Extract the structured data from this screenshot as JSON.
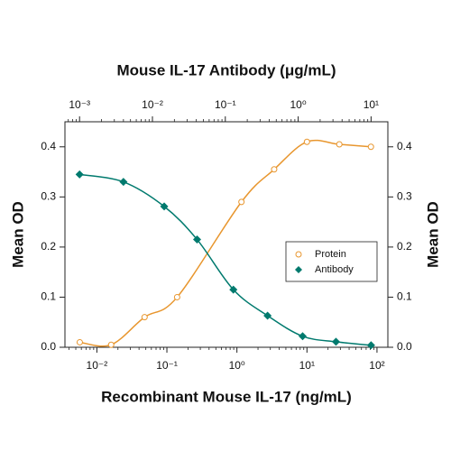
{
  "chart_data": {
    "type": "scatter",
    "x2label": "Mouse IL-17 Antibody (μg/mL)",
    "xlabel": "Recombinant Mouse IL-17 (ng/mL)",
    "ylabel": "Mean OD",
    "xscale": "log",
    "xlim": [
      0.0035,
      143
    ],
    "xticks": [
      {
        "value": 0.01,
        "label": "10⁻²"
      },
      {
        "value": 0.1,
        "label": "10⁻¹"
      },
      {
        "value": 1,
        "label": "10⁰"
      },
      {
        "value": 10,
        "label": "10¹"
      },
      {
        "value": 100,
        "label": "10²"
      }
    ],
    "x2lim": [
      0.00063,
      17
    ],
    "x2ticks": [
      {
        "value": 0.001,
        "label": "10⁻³"
      },
      {
        "value": 0.01,
        "label": "10⁻²"
      },
      {
        "value": 0.1,
        "label": "10⁻¹"
      },
      {
        "value": 1,
        "label": "10⁰"
      },
      {
        "value": 10,
        "label": "10¹"
      }
    ],
    "ylim": [
      0,
      0.45
    ],
    "yticks": [
      {
        "value": 0,
        "label": "0.0"
      },
      0.1,
      0.2,
      0.3,
      0.4
    ],
    "legend": "right",
    "series": [
      {
        "name": "Protein",
        "color": "#e8962e",
        "marker": "circle",
        "axis": "x",
        "x": [
          0.0057,
          0.016,
          0.048,
          0.14,
          1.16,
          3.4,
          10,
          29,
          82
        ],
        "values": [
          0.01,
          0.005,
          0.06,
          0.1,
          0.29,
          0.355,
          0.41,
          0.405,
          0.4
        ]
      },
      {
        "name": "Antibody",
        "color": "#007a6e",
        "marker": "diamond",
        "axis": "x2",
        "x": [
          0.001,
          0.004,
          0.0145,
          0.041,
          0.129,
          0.38,
          1.15,
          3.3,
          10
        ],
        "values": [
          0.345,
          0.33,
          0.281,
          0.215,
          0.115,
          0.063,
          0.022,
          0.011,
          0.004
        ]
      }
    ]
  }
}
